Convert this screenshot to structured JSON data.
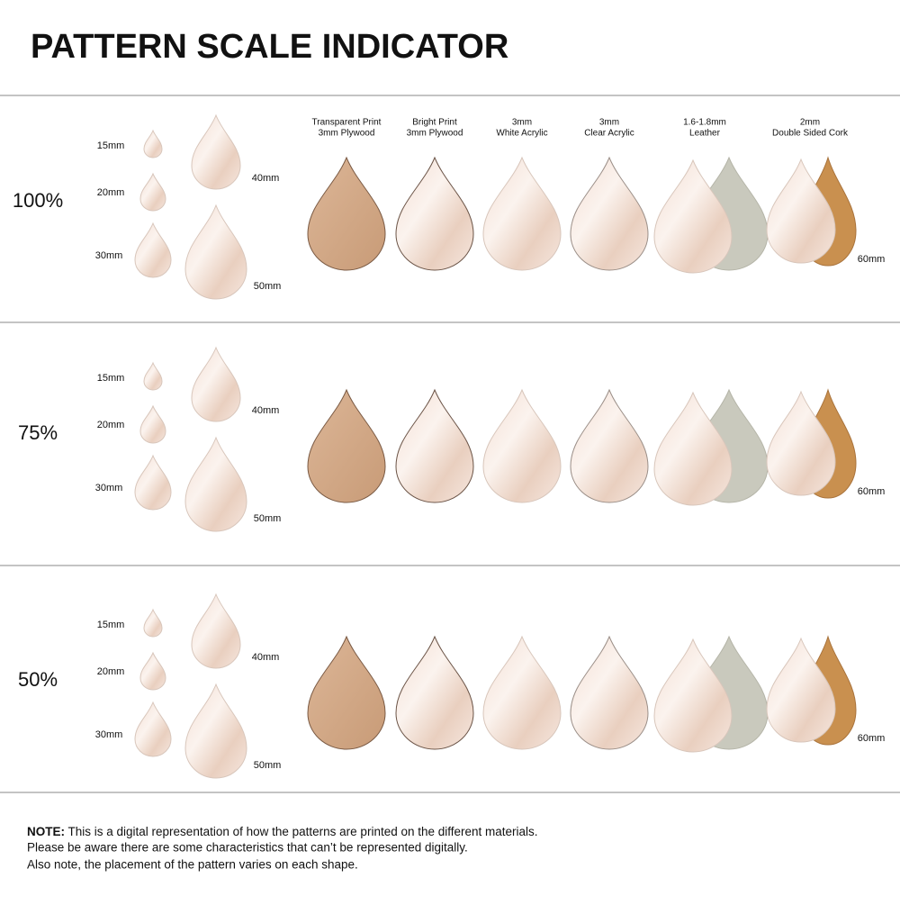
{
  "title": "PATTERN SCALE INDICATOR",
  "materials": [
    {
      "lines": [
        "Transparent Print",
        "3mm Plywood"
      ]
    },
    {
      "lines": [
        "Bright Print",
        "3mm Plywood"
      ]
    },
    {
      "lines": [
        "3mm",
        "White Acrylic"
      ]
    },
    {
      "lines": [
        "3mm",
        "Clear Acrylic"
      ]
    },
    {
      "lines": [
        "1.6-1.8mm",
        "Leather"
      ]
    },
    {
      "lines": [
        "2mm",
        "Double Sided Cork"
      ]
    }
  ],
  "rows": [
    {
      "scale": "100%",
      "sizes": [
        "15mm",
        "20mm",
        "30mm",
        "40mm",
        "50mm",
        "60mm"
      ]
    },
    {
      "scale": "75%",
      "sizes": [
        "15mm",
        "20mm",
        "30mm",
        "40mm",
        "50mm",
        "60mm"
      ]
    },
    {
      "scale": "50%",
      "sizes": [
        "15mm",
        "20mm",
        "30mm",
        "40mm",
        "50mm",
        "60mm"
      ]
    }
  ],
  "note": {
    "label": "NOTE:",
    "lines": [
      " This is a digital representation of how the patterns are printed on the different materials.",
      "Please be aware there are some characteristics that can’t be represented digitally.",
      "Also note, the placement of the pattern varies on each shape."
    ]
  }
}
